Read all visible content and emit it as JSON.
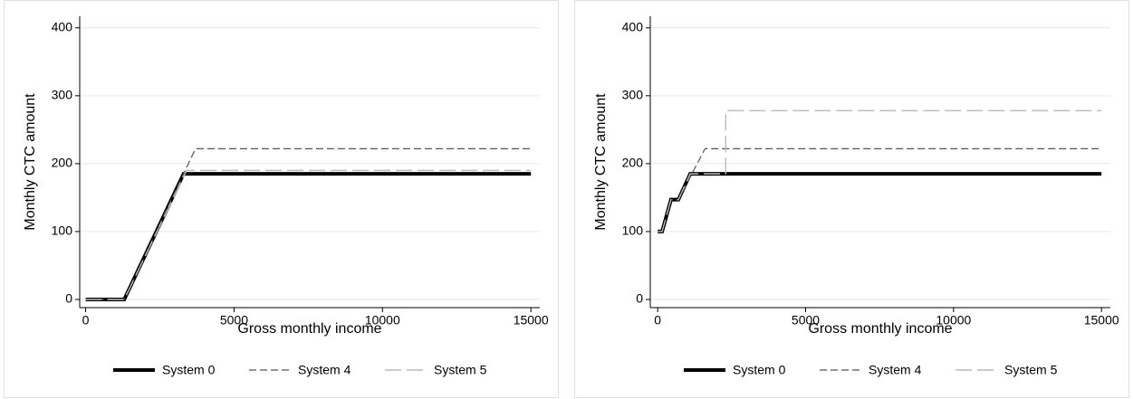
{
  "chart_data": [
    {
      "type": "line",
      "ylabel": "Monthly CTC amount",
      "xlabel": "Gross monthly income",
      "xlim": [
        -200,
        15300
      ],
      "ylim": [
        -12,
        417
      ],
      "xticks": [
        0,
        5000,
        10000,
        15000
      ],
      "yticks": [
        0,
        100,
        200,
        300,
        400
      ],
      "grid": true,
      "series": [
        {
          "name": "System 0",
          "color": "#000000",
          "dash": "solid",
          "x": [
            0,
            1300,
            3300,
            15000
          ],
          "values": [
            0,
            0,
            185,
            185
          ]
        },
        {
          "name": "System 4",
          "color": "#555555",
          "dash": "dashed",
          "x": [
            0,
            1300,
            3700,
            15000
          ],
          "values": [
            0,
            0,
            222,
            222
          ]
        },
        {
          "name": "System 5",
          "color": "#bbbbbb",
          "dash": "longdash",
          "x": [
            0,
            1300,
            3400,
            15000
          ],
          "values": [
            0,
            0,
            190,
            190
          ]
        }
      ]
    },
    {
      "type": "line",
      "ylabel": "Monthly CTC amount",
      "xlabel": "Gross monthly income",
      "xlim": [
        -250,
        15300
      ],
      "ylim": [
        -12,
        417
      ],
      "xticks": [
        0,
        5000,
        10000,
        15000
      ],
      "yticks": [
        0,
        100,
        200,
        300,
        400
      ],
      "grid": true,
      "series": [
        {
          "name": "System 0",
          "color": "#000000",
          "dash": "solid",
          "x": [
            0,
            150,
            450,
            700,
            1100,
            15000
          ],
          "values": [
            100,
            100,
            147,
            147,
            185,
            185
          ]
        },
        {
          "name": "System 4",
          "color": "#555555",
          "dash": "dashed",
          "x": [
            0,
            150,
            450,
            700,
            1600,
            15000
          ],
          "values": [
            100,
            100,
            147,
            147,
            222,
            222
          ]
        },
        {
          "name": "System 5",
          "color": "#bbbbbb",
          "dash": "longdash",
          "x": [
            0,
            150,
            450,
            700,
            1100,
            2300,
            2300,
            15000
          ],
          "values": [
            100,
            100,
            147,
            147,
            185,
            185,
            278,
            278
          ]
        }
      ]
    }
  ]
}
